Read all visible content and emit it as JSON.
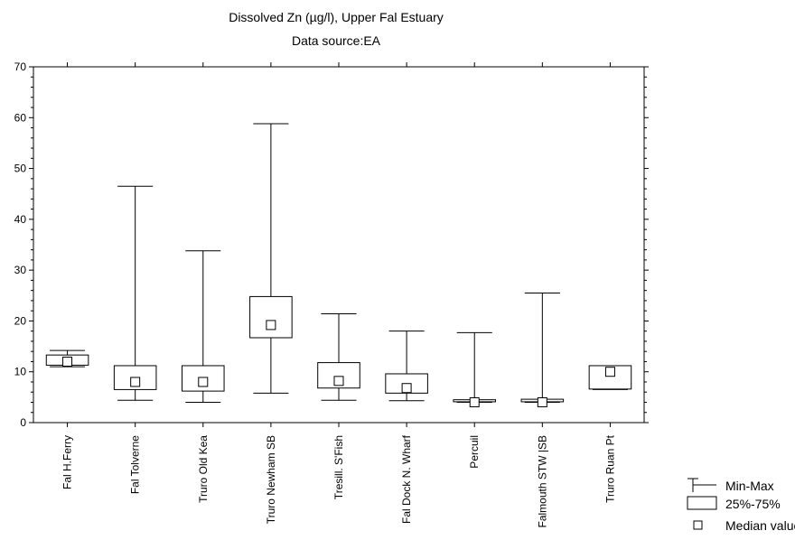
{
  "chart_data": {
    "type": "boxplot",
    "title": "Dissolved Zn (µg/l), Upper Fal Estuary",
    "subtitle": "Data source:EA",
    "xlabel": "",
    "ylabel": "",
    "ylim": [
      0,
      70
    ],
    "yticks": [
      "0",
      "10",
      "20",
      "30",
      "40",
      "50",
      "60",
      "70"
    ],
    "grid": false,
    "legend_position": "bottom-right",
    "categories": [
      "Fal H.Ferry",
      "Fal Tolverne",
      "Truro Old Kea",
      "Truro Newham SB",
      "Tresill. S'Fish",
      "Fal Dock N. Wharf",
      "Percuil",
      "Falmouth STW |SB",
      "Truro Ruan Pt"
    ],
    "min": [
      11.0,
      4.4,
      4.0,
      5.8,
      4.4,
      4.3,
      4.0,
      4.0,
      6.5
    ],
    "q1": [
      11.3,
      6.5,
      6.2,
      16.7,
      6.8,
      5.8,
      4.1,
      4.1,
      6.6
    ],
    "median": [
      12.0,
      8.0,
      8.0,
      19.2,
      8.2,
      6.8,
      4.0,
      4.0,
      10.0
    ],
    "q3": [
      13.3,
      11.2,
      11.2,
      24.8,
      11.8,
      9.6,
      4.5,
      4.6,
      11.2
    ],
    "max": [
      14.2,
      46.5,
      33.8,
      58.8,
      21.4,
      18.0,
      17.7,
      25.5,
      11.2
    ],
    "legend": [
      {
        "label": "Min-Max",
        "symbol": "whisker"
      },
      {
        "label": "25%-75%",
        "symbol": "box"
      },
      {
        "label": "Median value",
        "symbol": "marker"
      }
    ]
  }
}
